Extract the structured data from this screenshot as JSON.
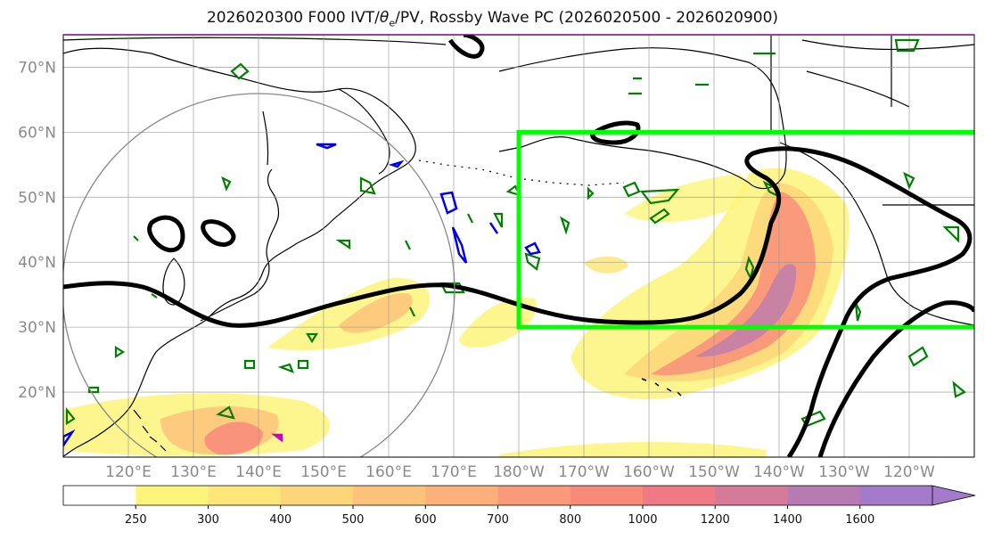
{
  "title_prefix": "2026020300 F000 IVT/",
  "title_theta": "θ",
  "title_sub": "e",
  "title_suffix": "/PV, Rossby Wave PC (2026020500 - 2026020900)",
  "lat_labels": [
    "70°N",
    "60°N",
    "50°N",
    "40°N",
    "30°N",
    "20°N"
  ],
  "lat_values": [
    70,
    60,
    50,
    40,
    30,
    20
  ],
  "lon_labels": [
    "120°E",
    "130°E",
    "140°E",
    "150°E",
    "160°E",
    "170°E",
    "180°W",
    "170°W",
    "160°W",
    "150°W",
    "140°W",
    "130°W",
    "120°W"
  ],
  "lon_values": [
    120,
    130,
    140,
    150,
    160,
    170,
    180,
    190,
    200,
    210,
    220,
    230,
    240
  ],
  "extent": {
    "lon_min": 110,
    "lon_max": 250,
    "lat_min": 10,
    "lat_max": 75
  },
  "colorbar": {
    "ticks": [
      "250",
      "300",
      "400",
      "500",
      "600",
      "700",
      "800",
      "1000",
      "1200",
      "1400",
      "1600"
    ],
    "colors": [
      "#ffffff",
      "#fdf57a",
      "#fde67a",
      "#fdd67a",
      "#fdc37a",
      "#fdb07a",
      "#fb9a7a",
      "#f88a7a",
      "#ef7a86",
      "#d67a9a",
      "#b87ab2",
      "#a47acb"
    ]
  },
  "colors": {
    "ivt_line": "#f07070",
    "pv": "#000000",
    "theta": "#008000",
    "neg": "#0000ee",
    "box": "#00ff00",
    "coast": "#000000"
  }
}
